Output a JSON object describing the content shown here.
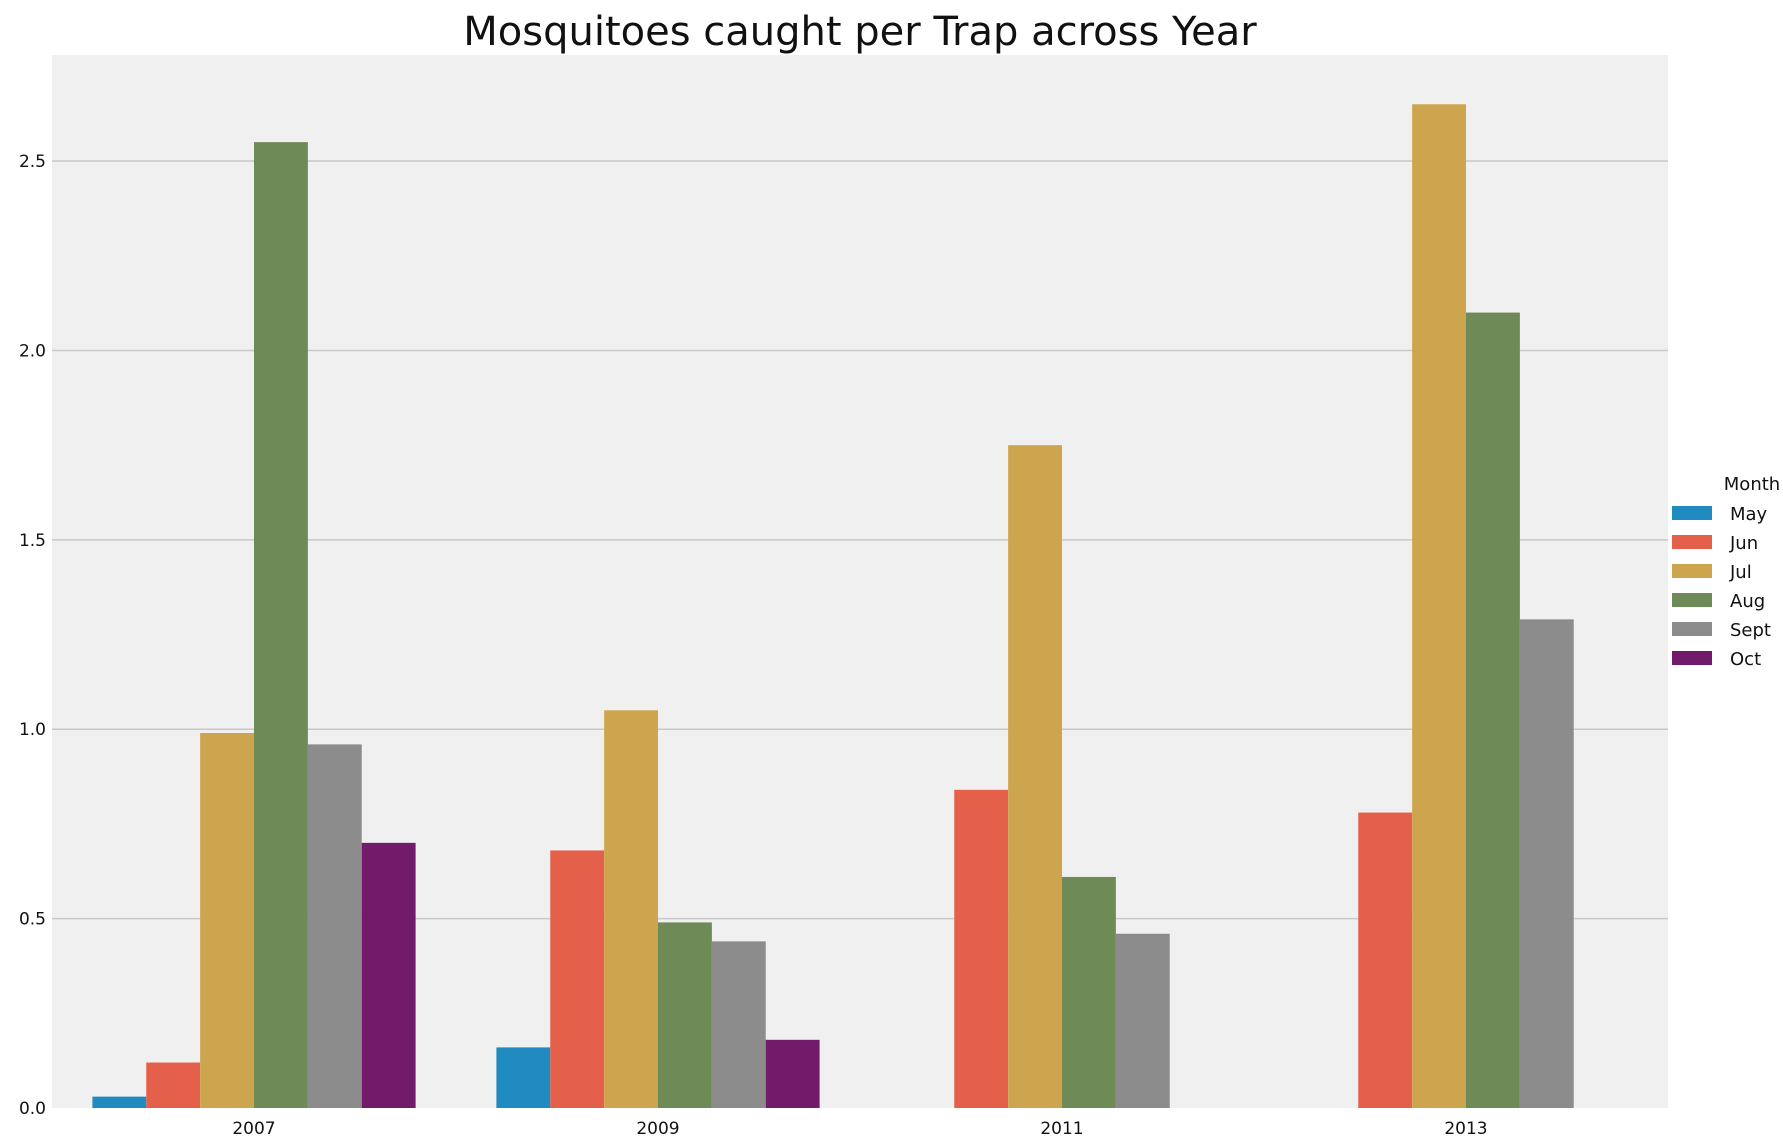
{
  "chart_data": {
    "type": "bar",
    "title": "Mosquitoes caught per Trap across Year",
    "xlabel": "",
    "ylabel": "",
    "categories": [
      "2007",
      "2009",
      "2011",
      "2013"
    ],
    "ylim": [
      0,
      2.78
    ],
    "yticks": [
      "0.0",
      "0.5",
      "1.0",
      "1.5",
      "2.0",
      "2.5"
    ],
    "grid": "horizontal",
    "legend": {
      "title": "Month",
      "placement": "right"
    },
    "series": [
      {
        "name": "May",
        "color": "#1f8bc0",
        "values": [
          0.03,
          0.16,
          null,
          null
        ]
      },
      {
        "name": "Jun",
        "color": "#e5604a",
        "values": [
          0.12,
          0.68,
          0.84,
          0.78
        ]
      },
      {
        "name": "Jul",
        "color": "#cea54f",
        "values": [
          0.99,
          1.05,
          1.75,
          2.65
        ]
      },
      {
        "name": "Aug",
        "color": "#6e8a56",
        "values": [
          2.55,
          0.49,
          0.61,
          2.1
        ]
      },
      {
        "name": "Sept",
        "color": "#8c8c8c",
        "values": [
          0.96,
          0.44,
          0.46,
          1.29
        ]
      },
      {
        "name": "Oct",
        "color": "#721b6b",
        "values": [
          0.7,
          0.18,
          null,
          null
        ]
      }
    ]
  }
}
